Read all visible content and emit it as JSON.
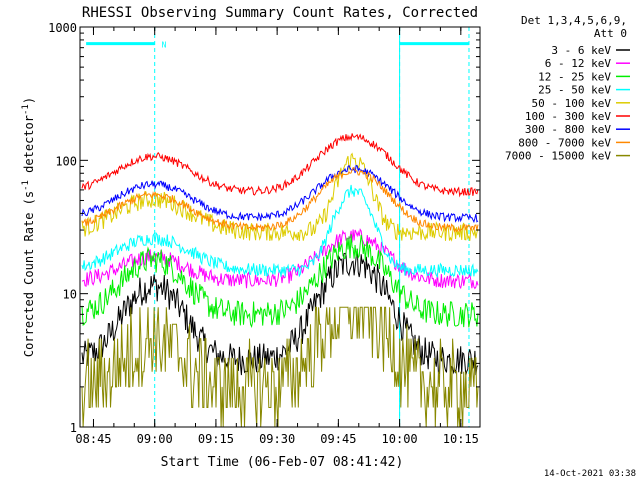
{
  "chart_data": {
    "type": "line",
    "title": "RHESSI Observing Summary Count Rates, Corrected",
    "xlabel": "Start Time (06-Feb-07 08:41:42)",
    "ylabel_main": "Corrected Count Rate (s",
    "ylabel_sup1": "-1",
    "ylabel_mid": " detector",
    "ylabel_sup2": "-1",
    "ylabel_end": ")",
    "x_unit": "minutes after 08:41:42",
    "xlim": [
      0,
      98
    ],
    "ylim": [
      1,
      1000
    ],
    "y_scale": "log",
    "x_ticks": [
      {
        "x": 3.3,
        "label": "08:45"
      },
      {
        "x": 18.3,
        "label": "09:00"
      },
      {
        "x": 33.3,
        "label": "09:15"
      },
      {
        "x": 48.3,
        "label": "09:30"
      },
      {
        "x": 63.3,
        "label": "09:45"
      },
      {
        "x": 78.3,
        "label": "10:00"
      },
      {
        "x": 93.3,
        "label": "10:15"
      }
    ],
    "y_ticks": [
      {
        "y": 1,
        "label": "1"
      },
      {
        "y": 10,
        "label": "10"
      },
      {
        "y": 100,
        "label": "100"
      },
      {
        "y": 1000,
        "label": "1000"
      }
    ],
    "night_lines": [
      18.3,
      78.3,
      95.3
    ],
    "orbit_markers": [
      {
        "start": 1.5,
        "end": 18.3
      },
      {
        "start": 78.3,
        "end": 95.3
      }
    ],
    "saa_marker": {
      "x": 20.0,
      "label": "N"
    },
    "legend_header": [
      "Det 1,3,4,5,6,9,",
      "Att 0"
    ],
    "series": [
      {
        "name": "3 - 6 keV",
        "color": "#000000",
        "base": 3.2,
        "peaks": [
          [
            18,
            11.5,
            6
          ],
          [
            67,
            17.5,
            6.5
          ]
        ],
        "noise": 0.12,
        "stepped": false
      },
      {
        "name": "6 - 12 keV",
        "color": "#ff00ff",
        "base": 12.5,
        "peaks": [
          [
            18,
            19,
            7
          ],
          [
            67,
            27,
            7
          ]
        ],
        "noise": 0.06,
        "stepped": false
      },
      {
        "name": "12 - 25 keV",
        "color": "#00ee00",
        "base": 7.0,
        "peaks": [
          [
            18,
            18,
            6.5
          ],
          [
            67,
            23,
            6.5
          ]
        ],
        "noise": 0.1,
        "stepped": false
      },
      {
        "name": "25 - 50 keV",
        "color": "#00ffff",
        "base": 15.0,
        "peaks": [
          [
            18,
            26,
            8
          ],
          [
            67,
            59,
            4
          ]
        ],
        "noise": 0.05,
        "stepped": false
      },
      {
        "name": "50 - 100 keV",
        "color": "#ddcc00",
        "base": 29.0,
        "peaks": [
          [
            18,
            51,
            8
          ],
          [
            67,
            102,
            3.5
          ]
        ],
        "noise": 0.07,
        "stepped": false
      },
      {
        "name": "100 - 300 keV",
        "color": "#ff0000",
        "base": 58.0,
        "peaks": [
          [
            18,
            107,
            8
          ],
          [
            67,
            150,
            7.5
          ]
        ],
        "noise": 0.03,
        "stepped": false
      },
      {
        "name": "300 - 800 keV",
        "color": "#0000ff",
        "base": 37.0,
        "peaks": [
          [
            18,
            66,
            8
          ],
          [
            67,
            86,
            7.5
          ]
        ],
        "noise": 0.03,
        "stepped": false
      },
      {
        "name": "800 - 7000 keV",
        "color": "#ff8800",
        "base": 31.0,
        "peaks": [
          [
            18,
            55,
            8
          ],
          [
            67,
            83,
            7
          ]
        ],
        "noise": 0.03,
        "stepped": false
      },
      {
        "name": "7000 - 15000 keV",
        "color": "#888800",
        "base": 2.0,
        "peaks": [
          [
            18,
            4.6,
            6
          ],
          [
            67,
            7.8,
            6.5
          ]
        ],
        "noise": 0.3,
        "stepped": true
      }
    ]
  },
  "footer": {
    "timestamp": "14-Oct-2021 03:38"
  }
}
